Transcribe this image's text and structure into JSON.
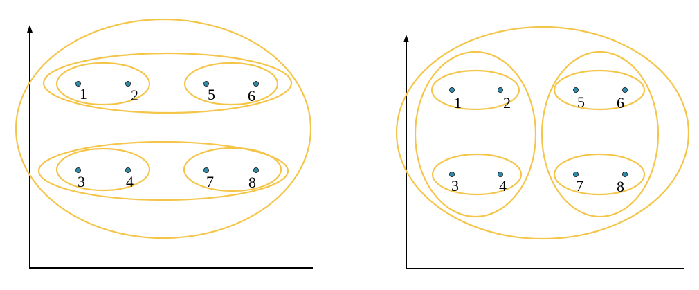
{
  "colors": {
    "cluster_outline": "#F5C54A",
    "point_fill": "#2E8CA8",
    "axis": "#000000",
    "background": "#FFFFFF"
  },
  "diagrams": [
    {
      "id": "left",
      "description_kind": "hierarchical-clustering-horizontal-grouping",
      "points": [
        {
          "label": "1"
        },
        {
          "label": "2"
        },
        {
          "label": "5"
        },
        {
          "label": "6"
        },
        {
          "label": "3"
        },
        {
          "label": "4"
        },
        {
          "label": "7"
        },
        {
          "label": "8"
        }
      ]
    },
    {
      "id": "right",
      "description_kind": "hierarchical-clustering-vertical-grouping",
      "points": [
        {
          "label": "1"
        },
        {
          "label": "2"
        },
        {
          "label": "5"
        },
        {
          "label": "6"
        },
        {
          "label": "3"
        },
        {
          "label": "4"
        },
        {
          "label": "7"
        },
        {
          "label": "8"
        }
      ]
    }
  ]
}
